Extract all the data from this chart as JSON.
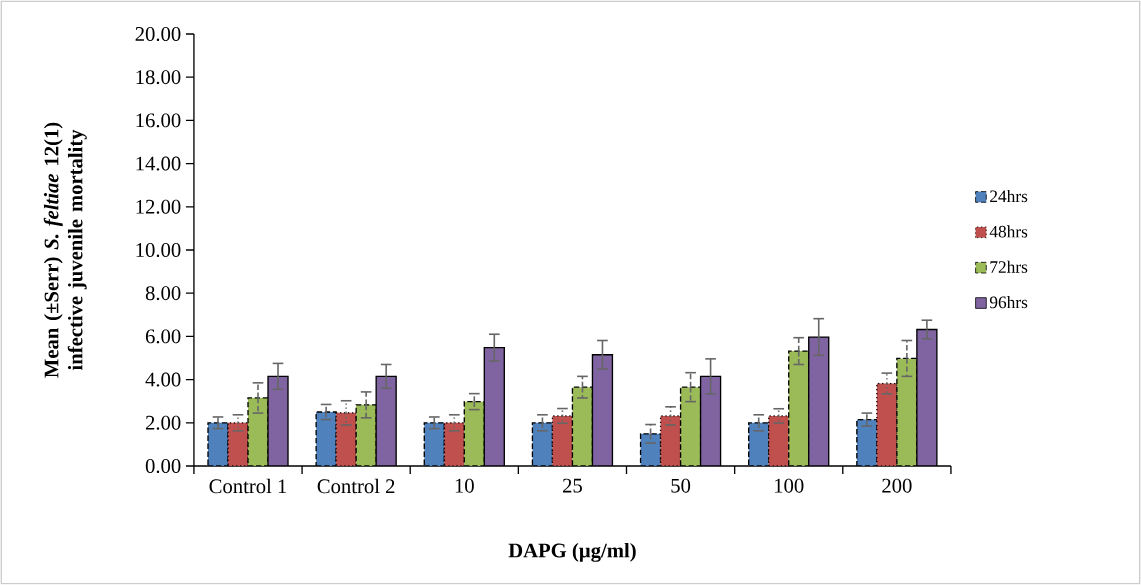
{
  "chart_data": {
    "type": "bar",
    "xlabel": "**DAPG (µg/ml**)",
    "ylabel": "Mean (±Serr) *S. feltiae* 12(1) infective juvenile mortality",
    "categories": [
      "Control 1",
      "Control 2",
      "10",
      "25",
      "50",
      "100",
      "200"
    ],
    "series": [
      {
        "name": "24hrs",
        "color": "#4f81bd",
        "line_style": "dashed",
        "values": [
          2.0,
          2.5,
          2.0,
          2.0,
          1.49,
          2.0,
          2.15
        ],
        "errors": [
          0.27,
          0.35,
          0.27,
          0.37,
          0.43,
          0.37,
          0.3
        ]
      },
      {
        "name": "48hrs",
        "color": "#c0504d",
        "line_style": "dotted",
        "values": [
          2.0,
          2.46,
          2.0,
          2.32,
          2.32,
          2.32,
          3.82
        ],
        "errors": [
          0.37,
          0.56,
          0.37,
          0.34,
          0.42,
          0.33,
          0.48
        ]
      },
      {
        "name": "72hrs",
        "color": "#9bbb59",
        "line_style": "dashed",
        "values": [
          3.15,
          2.83,
          2.98,
          3.65,
          3.65,
          5.32,
          4.98
        ],
        "errors": [
          0.7,
          0.6,
          0.37,
          0.5,
          0.67,
          0.62,
          0.83
        ]
      },
      {
        "name": "96hrs",
        "color": "#8064a2",
        "line_style": "solid",
        "values": [
          4.15,
          4.15,
          5.48,
          5.15,
          4.15,
          5.97,
          6.32
        ],
        "errors": [
          0.6,
          0.55,
          0.62,
          0.66,
          0.81,
          0.85,
          0.43
        ]
      }
    ],
    "ylim": [
      0,
      20
    ],
    "yticks": [
      {
        "value": 0,
        "label": "0.00"
      },
      {
        "value": 2,
        "label": "2.00"
      },
      {
        "value": 4,
        "label": "4.00"
      },
      {
        "value": 6,
        "label": "6.00"
      },
      {
        "value": 8,
        "label": "8.00"
      },
      {
        "value": 10,
        "label": "10.00"
      },
      {
        "value": 12,
        "label": "12.00"
      },
      {
        "value": 14,
        "label": "14.00"
      },
      {
        "value": 16,
        "label": "16.00"
      },
      {
        "value": 18,
        "label": "18.00"
      },
      {
        "value": 20,
        "label": "20.00"
      }
    ],
    "grid": false,
    "legend": "right"
  }
}
